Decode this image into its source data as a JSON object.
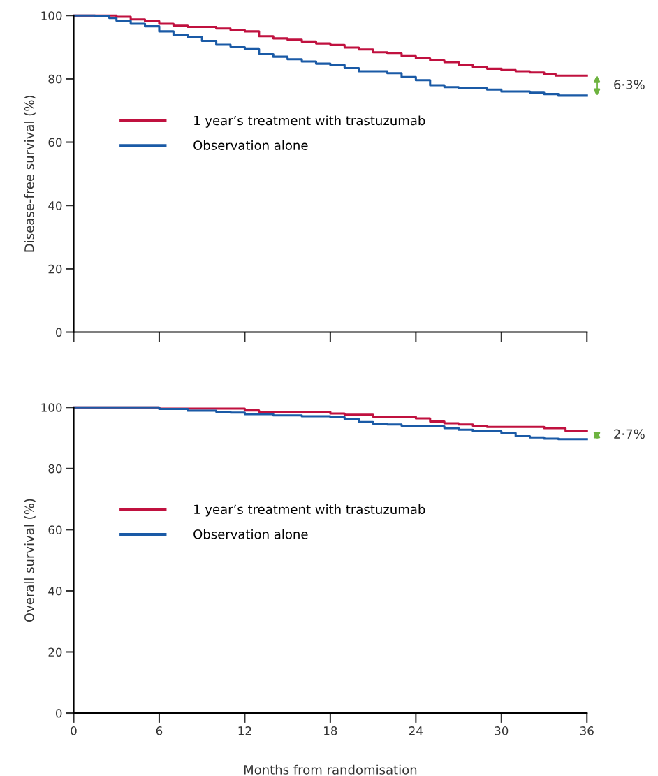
{
  "chart_data": [
    {
      "type": "step",
      "ylabel": "Disease-free survival (%)",
      "xlim": [
        0,
        36
      ],
      "xticks": [
        {
          "value": 0,
          "label": null
        },
        {
          "value": 6,
          "label": null
        },
        {
          "value": 12,
          "label": null
        },
        {
          "value": 18,
          "label": null
        },
        {
          "value": 24,
          "label": null
        },
        {
          "value": 30,
          "label": null
        },
        {
          "value": 36,
          "label": null
        }
      ],
      "ylim": [
        0,
        100
      ],
      "yticks": [
        0,
        20,
        40,
        60,
        80,
        100
      ],
      "tick_labels": "y",
      "grid": false,
      "legend": "left",
      "annotations": [
        "6·3%"
      ],
      "series": [
        {
          "name": "1 year’s treatment with trastuzumab",
          "color": "#c0113f",
          "x": [
            0,
            2,
            3,
            4,
            5,
            6,
            7,
            8,
            10,
            11,
            12,
            13,
            14,
            15,
            16,
            17,
            18,
            19,
            20,
            21,
            22,
            23,
            24,
            25,
            26,
            27,
            28,
            29,
            30,
            31,
            32,
            33,
            33.8,
            36
          ],
          "values": [
            100,
            100,
            99.6,
            98.8,
            98.2,
            97.4,
            96.8,
            96.4,
            95.9,
            95.4,
            95.0,
            93.5,
            92.8,
            92.4,
            91.8,
            91.2,
            90.7,
            89.9,
            89.3,
            88.4,
            88.0,
            87.2,
            86.5,
            85.8,
            85.3,
            84.3,
            83.8,
            83.2,
            82.8,
            82.4,
            82.0,
            81.6,
            81.0,
            81.0
          ]
        },
        {
          "name": "Observation alone",
          "color": "#1a5aa6",
          "x": [
            0,
            1.5,
            2.5,
            3,
            4,
            5,
            6,
            7,
            8,
            9,
            10,
            11,
            12,
            13,
            14,
            15,
            16,
            17,
            18,
            19,
            20,
            21,
            22,
            23,
            24,
            25,
            26,
            27,
            28,
            29,
            30,
            31,
            32,
            33,
            34,
            36
          ],
          "values": [
            100,
            99.8,
            99.2,
            98.4,
            97.4,
            96.6,
            95.0,
            93.8,
            93.2,
            92.0,
            90.8,
            90.0,
            89.4,
            87.8,
            87.0,
            86.2,
            85.5,
            84.8,
            84.4,
            83.4,
            82.4,
            82.4,
            81.8,
            80.6,
            79.6,
            78.0,
            77.4,
            77.2,
            77.0,
            76.6,
            76.0,
            76.0,
            75.6,
            75.2,
            74.7,
            74.7
          ]
        }
      ]
    },
    {
      "type": "step",
      "ylabel": "Overall survival (%)",
      "xlabel": "Months from randomisation",
      "xlim": [
        0,
        36
      ],
      "xticks": [
        0,
        6,
        12,
        18,
        24,
        30,
        36
      ],
      "ylim": [
        0,
        100
      ],
      "yticks": [
        0,
        20,
        40,
        60,
        80,
        100
      ],
      "grid": false,
      "legend": "left",
      "annotations": [
        "2·7%"
      ],
      "series": [
        {
          "name": "1 year’s treatment with trastuzumab",
          "color": "#c0113f",
          "x": [
            0,
            6,
            12,
            13,
            18,
            19,
            21,
            24,
            25,
            26,
            27,
            28,
            29,
            33,
            34.5,
            36
          ],
          "values": [
            100,
            99.6,
            99.0,
            98.6,
            98.0,
            97.6,
            97.0,
            96.4,
            95.4,
            94.8,
            94.4,
            94.0,
            93.6,
            93.2,
            92.3,
            92.3
          ]
        },
        {
          "name": "Observation alone",
          "color": "#1a5aa6",
          "x": [
            0,
            2,
            4,
            6,
            8,
            10,
            11,
            12,
            14,
            16,
            18,
            19,
            20,
            21,
            22,
            23,
            25,
            26,
            27,
            28,
            30,
            31,
            32,
            33,
            34,
            36
          ],
          "values": [
            100,
            100,
            100,
            99.5,
            98.9,
            98.6,
            98.3,
            97.8,
            97.4,
            97.1,
            96.8,
            96.2,
            95.2,
            94.7,
            94.4,
            94.0,
            93.8,
            93.2,
            92.7,
            92.2,
            91.6,
            90.6,
            90.2,
            89.8,
            89.6,
            89.6
          ]
        }
      ]
    }
  ]
}
